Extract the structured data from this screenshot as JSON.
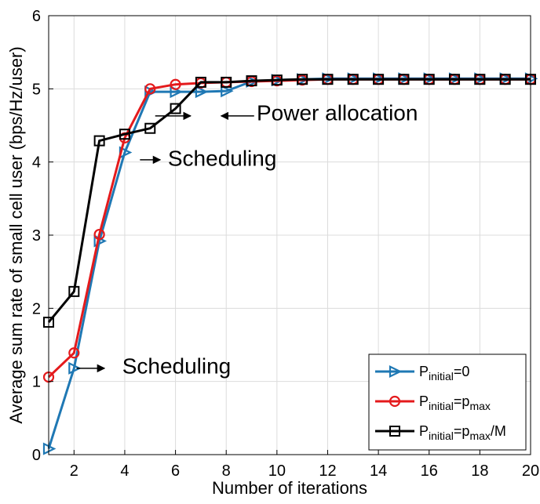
{
  "chart_data": {
    "type": "line",
    "xlabel": "Number of iterations",
    "ylabel": "Average sum rate  of small cell user  (bps/Hz/user)",
    "xlim": [
      1,
      20
    ],
    "ylim": [
      0,
      6
    ],
    "xticks": [
      2,
      4,
      6,
      8,
      10,
      12,
      14,
      16,
      18,
      20
    ],
    "yticks": [
      0,
      1,
      2,
      3,
      4,
      5,
      6
    ],
    "grid": true,
    "legend_position": "bottom-right",
    "x": [
      1,
      2,
      3,
      4,
      5,
      6,
      7,
      8,
      9,
      10,
      11,
      12,
      13,
      14,
      15,
      16,
      17,
      18,
      19,
      20
    ],
    "series": [
      {
        "name": "P_initial=0",
        "legend": {
          "main": "P",
          "sub": "initial",
          "rest": "=0"
        },
        "color": "#1f78b4",
        "marker": "triangle-right",
        "values": [
          0.08,
          1.18,
          2.92,
          4.13,
          4.96,
          4.96,
          4.96,
          4.97,
          5.1,
          5.12,
          5.13,
          5.14,
          5.14,
          5.14,
          5.14,
          5.14,
          5.14,
          5.14,
          5.14,
          5.14
        ]
      },
      {
        "name": "P_initial=p_max",
        "legend": {
          "main": "P",
          "sub": "initial",
          "rest": "=p",
          "sub2": "max",
          "rest2": ""
        },
        "color": "#e41a1c",
        "marker": "circle",
        "values": [
          1.06,
          1.39,
          3.01,
          4.33,
          5.0,
          5.06,
          5.08,
          5.09,
          5.1,
          5.11,
          5.12,
          5.13,
          5.13,
          5.13,
          5.13,
          5.13,
          5.13,
          5.13,
          5.13,
          5.13
        ]
      },
      {
        "name": "P_initial=p_max/M",
        "legend": {
          "main": "P",
          "sub": "initial",
          "rest": "=p",
          "sub2": "max",
          "rest2": "/M"
        },
        "color": "#000000",
        "marker": "square",
        "values": [
          1.81,
          2.23,
          4.29,
          4.38,
          4.46,
          4.73,
          5.09,
          5.09,
          5.11,
          5.12,
          5.13,
          5.13,
          5.13,
          5.13,
          5.13,
          5.13,
          5.13,
          5.13,
          5.13,
          5.13
        ]
      }
    ],
    "annotations": [
      {
        "text": "Power allocation",
        "arrows": [
          {
            "from": [
              5.2,
              4.63
            ],
            "to": [
              6.6,
              4.63
            ]
          },
          {
            "from": [
              9.1,
              4.63
            ],
            "to": [
              7.8,
              4.63
            ]
          }
        ],
        "text_at": [
          9.2,
          4.57
        ]
      },
      {
        "text": "Scheduling",
        "arrows": [
          {
            "from": [
              4.6,
              4.03
            ],
            "to": [
              5.4,
              4.03
            ]
          }
        ],
        "text_at": [
          5.7,
          3.95
        ]
      },
      {
        "text": "Scheduling",
        "arrows": [
          {
            "from": [
              2.1,
              1.18
            ],
            "to": [
              3.2,
              1.18
            ]
          }
        ],
        "text_at": [
          3.9,
          1.11
        ]
      }
    ]
  }
}
